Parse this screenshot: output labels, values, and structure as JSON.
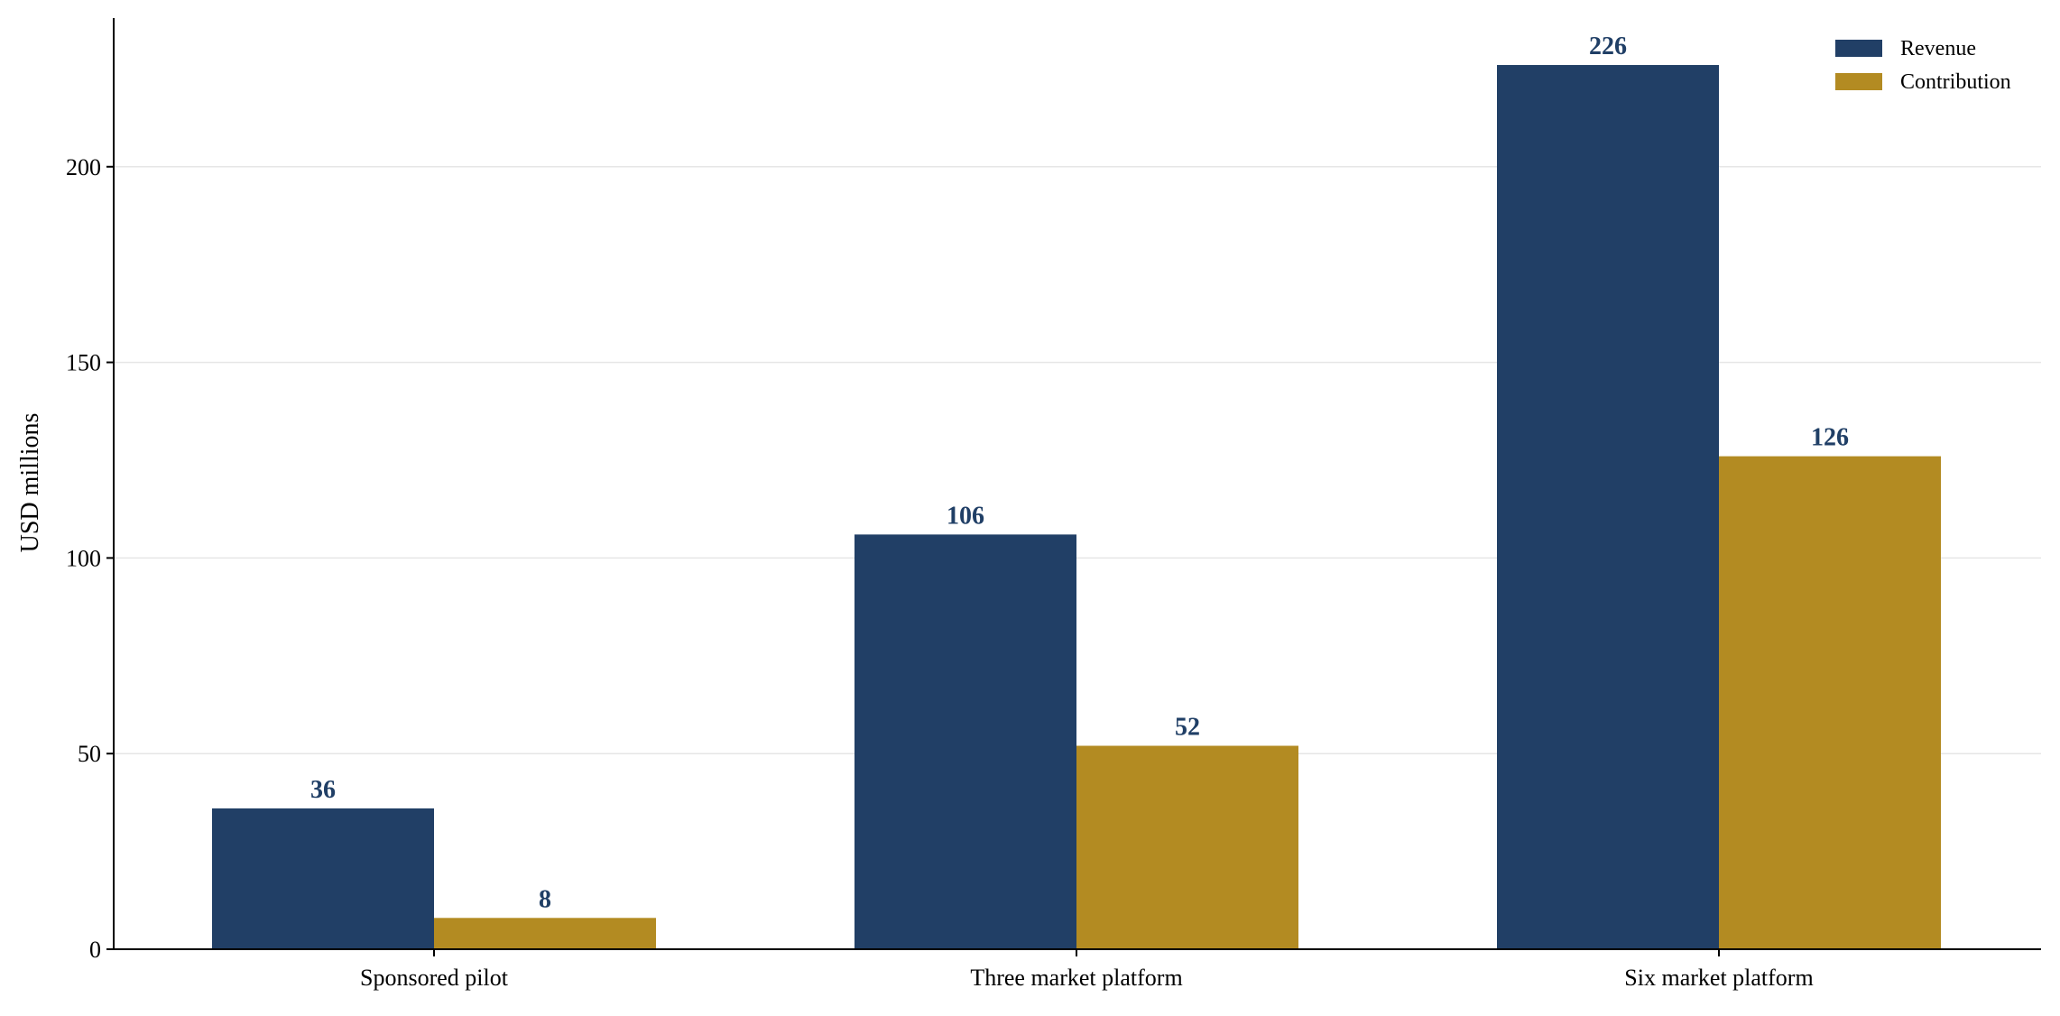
{
  "chart_data": {
    "type": "bar",
    "title": "",
    "xlabel": "",
    "ylabel": "USD millions",
    "categories": [
      "Sponsored pilot",
      "Three market platform",
      "Six market platform"
    ],
    "series": [
      {
        "name": "Revenue",
        "values": [
          36,
          106,
          226
        ],
        "color": "#213f66"
      },
      {
        "name": "Contribution",
        "values": [
          8,
          52,
          126
        ],
        "color": "#b38b22"
      }
    ],
    "ylim": [
      0,
      238
    ],
    "yticks": [
      0,
      50,
      100,
      150,
      200
    ],
    "grid": "horizontal",
    "legend_position": "top-right",
    "value_label_color": "#203f66"
  }
}
